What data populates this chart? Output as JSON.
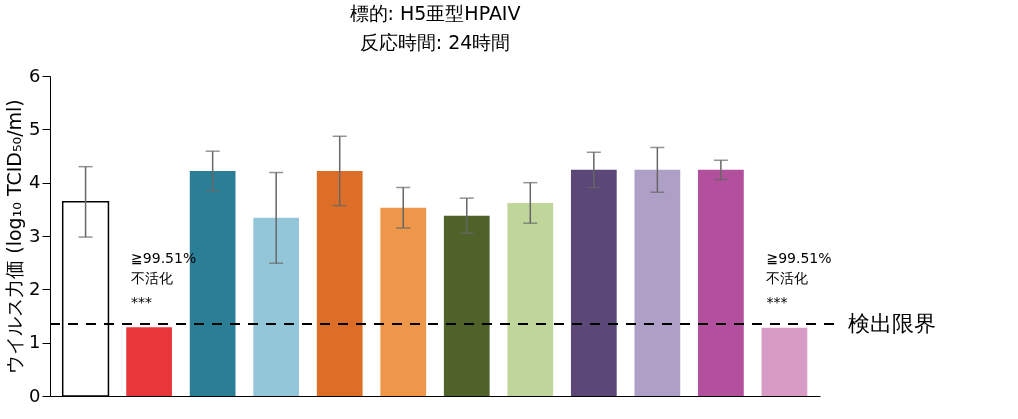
{
  "chart_data": {
    "type": "bar",
    "title": "標的: H5亜型HPAIV",
    "subtitle": "反応時間: 24時間",
    "ylabel": "ウイルス力価 (log₁₀ TCID₅₀/ml)",
    "categories": [
      null,
      null,
      null,
      null,
      null,
      null,
      null,
      null,
      null,
      null,
      null,
      null
    ],
    "values": [
      3.64,
      1.29,
      4.22,
      3.34,
      4.22,
      3.53,
      3.38,
      3.62,
      4.24,
      4.24,
      4.24,
      1.28
    ],
    "errors": [
      0.66,
      null,
      0.37,
      0.85,
      0.65,
      0.38,
      0.33,
      0.38,
      0.33,
      0.42,
      0.18,
      null
    ],
    "colors": [
      "#ffffff",
      "#e8373a",
      "#2a7f96",
      "#93c6d8",
      "#dc6e28",
      "#ee9649",
      "#4f6229",
      "#c0d59a",
      "#5b4778",
      "#ae9fc6",
      "#b2509e",
      "#d89bc6"
    ],
    "ylim": [
      0,
      6
    ],
    "yticks": [
      0,
      1,
      2,
      3,
      4,
      5,
      6
    ],
    "grid": false,
    "ref_lines": [
      {
        "axis": "y",
        "value": 1.35,
        "label": "検出限界",
        "line_style": "dashed",
        "color": "#000000"
      }
    ],
    "annotations": [
      "≧99.51%\n不活化",
      "***",
      "≧99.51%\n不活化",
      "***"
    ]
  }
}
